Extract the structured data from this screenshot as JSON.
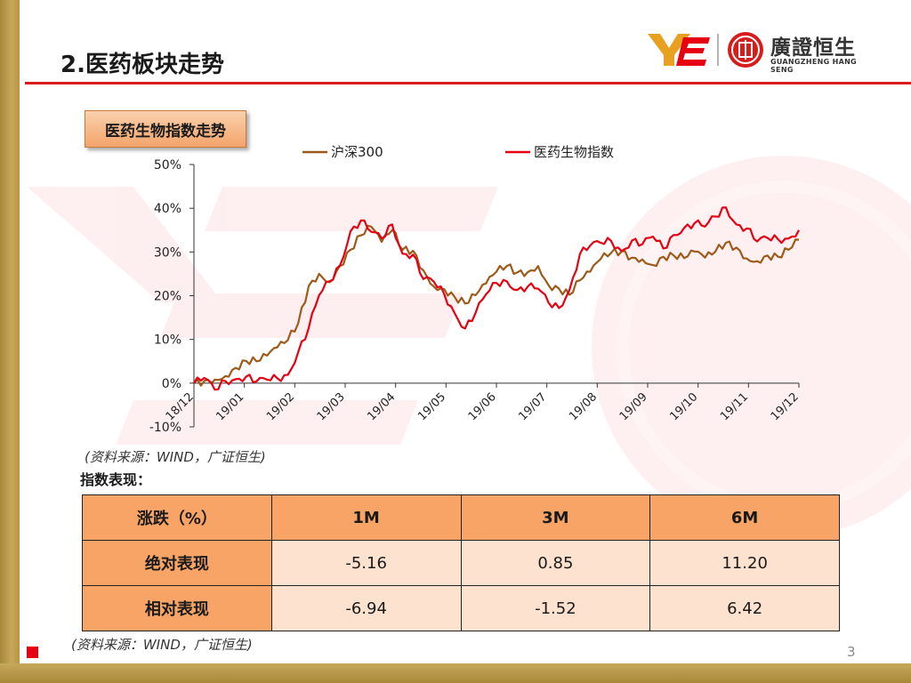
{
  "header": {
    "title": "2.医药板块走势",
    "logo_cn": "廣證恒生",
    "logo_en": "GUANGZHENG HANG SENG"
  },
  "chart_tag": "医药生物指数走势",
  "chart_data": {
    "type": "line",
    "series": [
      {
        "name": "沪深300",
        "color": "#9e5a1a",
        "values": [
          0,
          0.5,
          0.8,
          1.6,
          3.5,
          5.1,
          5.0,
          6.3,
          8.2,
          9.8,
          13.7,
          22.2,
          25.0,
          23.1,
          26.8,
          30.5,
          33.8,
          35.8,
          32.3,
          35.0,
          30.5,
          30.3,
          25.8,
          22.1,
          21.5,
          19.7,
          18.2,
          20.1,
          22.8,
          25.5,
          26.8,
          25.3,
          25.4,
          26.8,
          22.4,
          21.6,
          20.2,
          23.5,
          25.5,
          28.4,
          29.8,
          30.1,
          28.7,
          28.3,
          27.0,
          28.9,
          29.2,
          28.6,
          30.1,
          28.7,
          30.1,
          32.1,
          31.0,
          28.5,
          27.9,
          29.2,
          28.9,
          30.5,
          32.8
        ]
      },
      {
        "name": "医药生物指数",
        "color": "#e60012",
        "values": [
          0,
          1.2,
          -1.5,
          0.5,
          0.9,
          1.5,
          0.4,
          0.8,
          1.1,
          1.9,
          7.1,
          12.6,
          20.1,
          23.3,
          26.9,
          34.7,
          37.2,
          34.6,
          33.1,
          36.3,
          29.6,
          29.4,
          23.8,
          23.2,
          20.3,
          16.0,
          12.5,
          16.1,
          20.3,
          22.9,
          23.3,
          21.3,
          22.1,
          21.6,
          18.4,
          17.2,
          21.3,
          29.5,
          31.5,
          32.1,
          32.5,
          30.2,
          32.6,
          31.8,
          33.5,
          30.8,
          33.9,
          35.5,
          36.6,
          35.8,
          38.1,
          40.2,
          36.3,
          35.4,
          32.4,
          33.2,
          32.9,
          33.1,
          35.0
        ]
      }
    ],
    "x_ticks": [
      "18/12",
      "19/01",
      "19/02",
      "19/03",
      "19/04",
      "19/05",
      "19/06",
      "19/07",
      "19/08",
      "19/09",
      "19/10",
      "19/11",
      "19/12"
    ],
    "y_ticks": [
      "50%",
      "40%",
      "30%",
      "20%",
      "10%",
      "0%",
      "-10%"
    ],
    "ylim": [
      -10,
      50
    ],
    "legend_position": "top"
  },
  "source_note_1": "(资料来源：WIND，广证恒生)",
  "performance": {
    "label": "指数表现：",
    "headers": [
      "涨跌（%）",
      "1M",
      "3M",
      "6M"
    ],
    "rows": [
      {
        "name": "绝对表现",
        "values": [
          "-5.16",
          "0.85",
          "11.20"
        ]
      },
      {
        "name": "相对表现",
        "values": [
          "-6.94",
          "-1.52",
          "6.42"
        ]
      }
    ]
  },
  "source_note_2": "(资料来源：WIND，广证恒生)",
  "page_number": "3",
  "colors": {
    "accent_red": "#e60012",
    "table_header": "#f7a466",
    "table_cell": "#fde2cf",
    "gold": "#b89640"
  }
}
